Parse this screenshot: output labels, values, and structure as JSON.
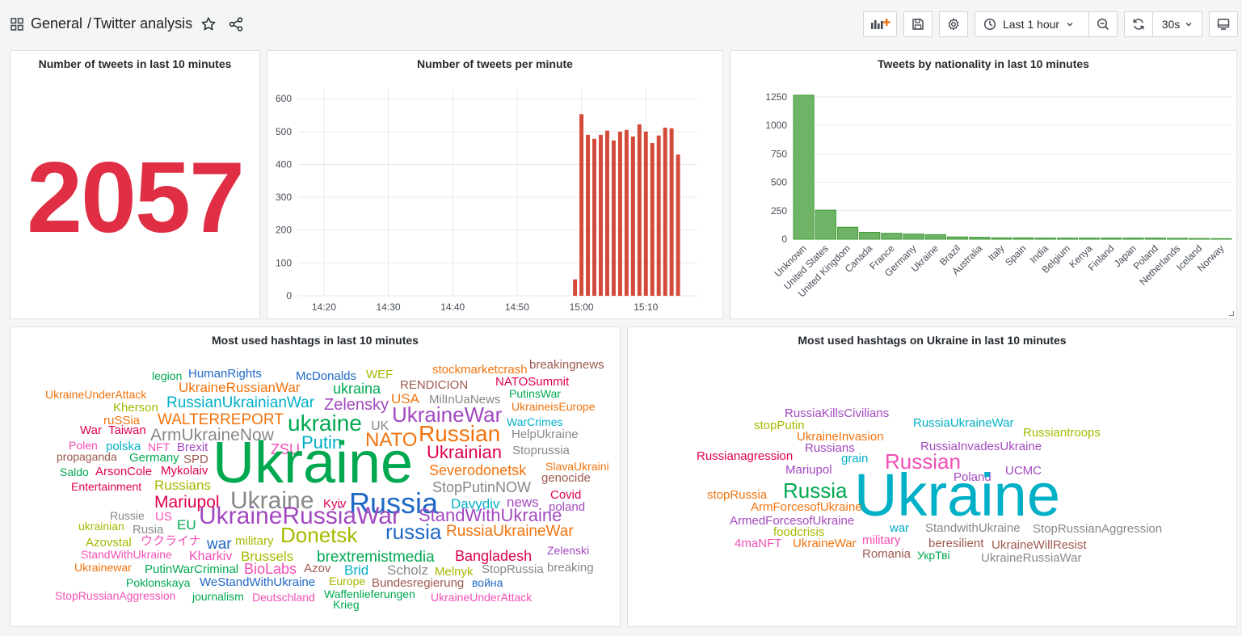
{
  "header": {
    "folder": "General",
    "separator": "/",
    "dashboard": "Twitter analysis",
    "time_range": "Last 1 hour",
    "refresh_interval": "30s"
  },
  "panels": {
    "stat": {
      "title": "Number of tweets in last 10 minutes",
      "value": "2057",
      "color": "#e02f44"
    },
    "per_minute": {
      "title": "Number of tweets per minute",
      "color": "#d44a3a",
      "y_ticks": [
        "0",
        "100",
        "200",
        "300",
        "400",
        "500",
        "600"
      ],
      "x_ticks": [
        "14:20",
        "14:30",
        "14:40",
        "14:50",
        "15:00",
        "15:10"
      ]
    },
    "nationality": {
      "title": "Tweets by nationality in last 10 minutes",
      "color": "#56a64b",
      "y_ticks": [
        "0",
        "250",
        "500",
        "750",
        "1000",
        "1250"
      ]
    },
    "hashtags": {
      "title": "Most used hashtags in last 10 minutes",
      "words": [
        {
          "t": "legion",
          "c": "#00a950",
          "x": 175,
          "y": 53,
          "s": 14
        },
        {
          "t": "HumanRights",
          "c": "#2068c5",
          "x": 220,
          "y": 50,
          "s": 15
        },
        {
          "t": "McDonalds",
          "c": "#2068c5",
          "x": 353,
          "y": 53,
          "s": 15
        },
        {
          "t": "WEF",
          "c": "#a7b900",
          "x": 440,
          "y": 51,
          "s": 15
        },
        {
          "t": "stockmarketcrash",
          "c": "#f2730d",
          "x": 522,
          "y": 45,
          "s": 15
        },
        {
          "t": "breakingnews",
          "c": "#9e5a4f",
          "x": 642,
          "y": 39,
          "s": 15
        },
        {
          "t": "RENDICION",
          "c": "#9e5a4f",
          "x": 482,
          "y": 64,
          "s": 15
        },
        {
          "t": "NATOSummit",
          "c": "#e0004f",
          "x": 600,
          "y": 60,
          "s": 15
        },
        {
          "t": "UkraineRussianWar",
          "c": "#f2730d",
          "x": 208,
          "y": 66,
          "s": 17
        },
        {
          "t": "ukraina",
          "c": "#00a950",
          "x": 399,
          "y": 67,
          "s": 18
        },
        {
          "t": "UkraineUnderAttack",
          "c": "#f2730d",
          "x": 43,
          "y": 76,
          "s": 14
        },
        {
          "t": "PutinsWar",
          "c": "#00a950",
          "x": 617,
          "y": 75,
          "s": 14
        },
        {
          "t": "USA",
          "c": "#f2730d",
          "x": 471,
          "y": 80,
          "s": 17
        },
        {
          "t": "MilInUaNews",
          "c": "#888888",
          "x": 518,
          "y": 82,
          "s": 15
        },
        {
          "t": "RussianUkrainianWar",
          "c": "#00b0c7",
          "x": 193,
          "y": 84,
          "s": 19
        },
        {
          "t": "Zelensky",
          "c": "#a249c0",
          "x": 388,
          "y": 86,
          "s": 20
        },
        {
          "t": "Kherson",
          "c": "#a7b900",
          "x": 127,
          "y": 92,
          "s": 15
        },
        {
          "t": "UkraineisEurope",
          "c": "#f2730d",
          "x": 620,
          "y": 91,
          "s": 14
        },
        {
          "t": "UkraineWar",
          "c": "#a249c0",
          "x": 472,
          "y": 95,
          "s": 26
        },
        {
          "t": "ruSSia",
          "c": "#f2730d",
          "x": 115,
          "y": 108,
          "s": 15
        },
        {
          "t": "WALTERREPORT",
          "c": "#f2730d",
          "x": 182,
          "y": 105,
          "s": 19
        },
        {
          "t": "ukraine",
          "c": "#00a950",
          "x": 343,
          "y": 105,
          "s": 28
        },
        {
          "t": "WarCrimes",
          "c": "#00b0c7",
          "x": 614,
          "y": 110,
          "s": 14
        },
        {
          "t": "War",
          "c": "#e0004f",
          "x": 86,
          "y": 120,
          "s": 15
        },
        {
          "t": "Taiwan",
          "c": "#e0004f",
          "x": 121,
          "y": 120,
          "s": 15
        },
        {
          "t": "UK",
          "c": "#888888",
          "x": 446,
          "y": 115,
          "s": 16
        },
        {
          "t": "ArmUkraineNow",
          "c": "#888888",
          "x": 173,
          "y": 123,
          "s": 21
        },
        {
          "t": "Russian",
          "c": "#f2730d",
          "x": 505,
          "y": 118,
          "s": 28
        },
        {
          "t": "HelpUkraine",
          "c": "#888888",
          "x": 620,
          "y": 125,
          "s": 15
        },
        {
          "t": "NATO",
          "c": "#f2730d",
          "x": 439,
          "y": 128,
          "s": 24
        },
        {
          "t": "Putin",
          "c": "#00b0c7",
          "x": 360,
          "y": 132,
          "s": 22
        },
        {
          "t": "Polen",
          "c": "#f24fb6",
          "x": 72,
          "y": 139,
          "s": 14
        },
        {
          "t": "polska",
          "c": "#00b0c7",
          "x": 118,
          "y": 140,
          "s": 15
        },
        {
          "t": "NFT",
          "c": "#f24fb6",
          "x": 170,
          "y": 141,
          "s": 14
        },
        {
          "t": "Brexit",
          "c": "#a249c0",
          "x": 206,
          "y": 141,
          "s": 15
        },
        {
          "t": "ZSU",
          "c": "#f24fb6",
          "x": 322,
          "y": 142,
          "s": 18
        },
        {
          "t": "Ukrainian",
          "c": "#e0004f",
          "x": 515,
          "y": 144,
          "s": 22
        },
        {
          "t": "Stoprussia",
          "c": "#888888",
          "x": 621,
          "y": 145,
          "s": 15
        },
        {
          "t": "propaganda",
          "c": "#9e5a4f",
          "x": 57,
          "y": 153,
          "s": 14
        },
        {
          "t": "Germany",
          "c": "#00a950",
          "x": 147,
          "y": 154,
          "s": 15
        },
        {
          "t": "SPD",
          "c": "#9e5a4f",
          "x": 214,
          "y": 156,
          "s": 15
        },
        {
          "t": "Ukraine",
          "c": "#00a950",
          "x": 250,
          "y": 132,
          "s": 72
        },
        {
          "t": "SlavaUkraini",
          "c": "#f2730d",
          "x": 662,
          "y": 165,
          "s": 14
        },
        {
          "t": "Saldo",
          "c": "#00a950",
          "x": 61,
          "y": 172,
          "s": 14
        },
        {
          "t": "ArsonCole",
          "c": "#e0004f",
          "x": 105,
          "y": 171,
          "s": 15
        },
        {
          "t": "Mykolaiv",
          "c": "#e0004f",
          "x": 186,
          "y": 170,
          "s": 15
        },
        {
          "t": "Severodonetsk",
          "c": "#f2730d",
          "x": 518,
          "y": 168,
          "s": 18
        },
        {
          "t": "genocide",
          "c": "#9e5a4f",
          "x": 657,
          "y": 179,
          "s": 15
        },
        {
          "t": "Entertainment",
          "c": "#e0004f",
          "x": 75,
          "y": 190,
          "s": 14
        },
        {
          "t": "Russians",
          "c": "#a7b900",
          "x": 178,
          "y": 187,
          "s": 17
        },
        {
          "t": "StopPutinNOW",
          "c": "#888888",
          "x": 522,
          "y": 189,
          "s": 18
        },
        {
          "t": "Mariupol",
          "c": "#e0004f",
          "x": 178,
          "y": 206,
          "s": 21
        },
        {
          "t": "Ukraine",
          "c": "#888888",
          "x": 272,
          "y": 200,
          "s": 30
        },
        {
          "t": "Russia",
          "c": "#2068c5",
          "x": 419,
          "y": 200,
          "s": 36
        },
        {
          "t": "Covid",
          "c": "#e0004f",
          "x": 668,
          "y": 200,
          "s": 15
        },
        {
          "t": "Kyiv",
          "c": "#e0004f",
          "x": 387,
          "y": 211,
          "s": 15
        },
        {
          "t": "Davydiv",
          "c": "#00b0c7",
          "x": 545,
          "y": 210,
          "s": 17
        },
        {
          "t": "news",
          "c": "#a249c0",
          "x": 614,
          "y": 208,
          "s": 17
        },
        {
          "t": "poland",
          "c": "#a249c0",
          "x": 666,
          "y": 215,
          "s": 15
        },
        {
          "t": "Russie",
          "c": "#888888",
          "x": 123,
          "y": 226,
          "s": 14
        },
        {
          "t": "US",
          "c": "#f24fb6",
          "x": 179,
          "y": 227,
          "s": 15
        },
        {
          "t": "UkraineRussiaWar",
          "c": "#a249c0",
          "x": 233,
          "y": 219,
          "s": 30
        },
        {
          "t": "StandWithUkraine",
          "c": "#a249c0",
          "x": 505,
          "y": 222,
          "s": 22
        },
        {
          "t": "EU",
          "c": "#00a950",
          "x": 206,
          "y": 236,
          "s": 17
        },
        {
          "t": "ukrainian",
          "c": "#a7b900",
          "x": 84,
          "y": 239,
          "s": 14
        },
        {
          "t": "Rusia",
          "c": "#888888",
          "x": 151,
          "y": 243,
          "s": 15
        },
        {
          "t": "Donetsk",
          "c": "#a7b900",
          "x": 334,
          "y": 244,
          "s": 26
        },
        {
          "t": "russia",
          "c": "#2068c5",
          "x": 464,
          "y": 240,
          "s": 26
        },
        {
          "t": "RussiaUkraineWar",
          "c": "#f2730d",
          "x": 539,
          "y": 243,
          "s": 19
        },
        {
          "t": "Azovstal",
          "c": "#a7b900",
          "x": 93,
          "y": 259,
          "s": 15
        },
        {
          "t": "ウクライナ",
          "c": "#f24fb6",
          "x": 161,
          "y": 257,
          "s": 15
        },
        {
          "t": "war",
          "c": "#2068c5",
          "x": 243,
          "y": 259,
          "s": 19
        },
        {
          "t": "military",
          "c": "#a7b900",
          "x": 278,
          "y": 257,
          "s": 15
        },
        {
          "t": "Zelenski",
          "c": "#a249c0",
          "x": 664,
          "y": 269,
          "s": 14
        },
        {
          "t": "StandWithUkraine",
          "c": "#f24fb6",
          "x": 87,
          "y": 274,
          "s": 14
        },
        {
          "t": "Kharkiv",
          "c": "#f24fb6",
          "x": 221,
          "y": 276,
          "s": 16
        },
        {
          "t": "Brussels",
          "c": "#a7b900",
          "x": 285,
          "y": 275,
          "s": 17
        },
        {
          "t": "brextremistmedia",
          "c": "#00a950",
          "x": 379,
          "y": 275,
          "s": 19
        },
        {
          "t": "Bangladesh",
          "c": "#e0004f",
          "x": 550,
          "y": 274,
          "s": 18
        },
        {
          "t": "Ukrainewar",
          "c": "#f2730d",
          "x": 79,
          "y": 290,
          "s": 14
        },
        {
          "t": "PutinWarCriminal",
          "c": "#00a950",
          "x": 166,
          "y": 292,
          "s": 15
        },
        {
          "t": "BioLabs",
          "c": "#f24fb6",
          "x": 289,
          "y": 290,
          "s": 18
        },
        {
          "t": "Azov",
          "c": "#9e5a4f",
          "x": 363,
          "y": 291,
          "s": 15
        },
        {
          "t": "Brid",
          "c": "#00b0c7",
          "x": 413,
          "y": 292,
          "s": 17
        },
        {
          "t": "Scholz",
          "c": "#888888",
          "x": 466,
          "y": 292,
          "s": 17
        },
        {
          "t": "StopRussia",
          "c": "#888888",
          "x": 583,
          "y": 292,
          "s": 15
        },
        {
          "t": "breaking",
          "c": "#888888",
          "x": 664,
          "y": 290,
          "s": 15
        },
        {
          "t": "Melnyk",
          "c": "#a7b900",
          "x": 525,
          "y": 295,
          "s": 15
        },
        {
          "t": "Poklonskaya",
          "c": "#00a950",
          "x": 143,
          "y": 309,
          "s": 14
        },
        {
          "t": "WeStandWithUkraine",
          "c": "#2068c5",
          "x": 234,
          "y": 308,
          "s": 15
        },
        {
          "t": "Europe",
          "c": "#a7b900",
          "x": 394,
          "y": 307,
          "s": 14
        },
        {
          "t": "Bundesregierung",
          "c": "#9e5a4f",
          "x": 447,
          "y": 309,
          "s": 15
        },
        {
          "t": "война",
          "c": "#2068c5",
          "x": 571,
          "y": 309,
          "s": 14
        },
        {
          "t": "StopRussianAggression",
          "c": "#f24fb6",
          "x": 55,
          "y": 325,
          "s": 14
        },
        {
          "t": "journalism",
          "c": "#00a950",
          "x": 225,
          "y": 326,
          "s": 14
        },
        {
          "t": "Deutschland",
          "c": "#f24fb6",
          "x": 299,
          "y": 327,
          "s": 14
        },
        {
          "t": "Waffenlieferungen",
          "c": "#00a950",
          "x": 388,
          "y": 323,
          "s": 14
        },
        {
          "t": "UkraineUnderAttack",
          "c": "#f24fb6",
          "x": 520,
          "y": 327,
          "s": 14
        },
        {
          "t": "Krieg",
          "c": "#00a950",
          "x": 399,
          "y": 336,
          "s": 14
        }
      ]
    },
    "ukraine_hashtags": {
      "title": "Most used hashtags on Ukraine in last 10 minutes",
      "words": [
        {
          "t": "RussiaKillsCivilians",
          "c": "#a249c0",
          "x": 194,
          "y": 99,
          "s": 15
        },
        {
          "t": "stopPutin",
          "c": "#a7b900",
          "x": 156,
          "y": 114,
          "s": 15
        },
        {
          "t": "RussiaUkraineWar",
          "c": "#00b0c7",
          "x": 353,
          "y": 111,
          "s": 15
        },
        {
          "t": "Russiantroops",
          "c": "#a7b900",
          "x": 489,
          "y": 123,
          "s": 15
        },
        {
          "t": "UkraineInvasion",
          "c": "#f2730d",
          "x": 209,
          "y": 128,
          "s": 15
        },
        {
          "t": "Russians",
          "c": "#a249c0",
          "x": 219,
          "y": 142,
          "s": 15
        },
        {
          "t": "RussiaInvadesUkraine",
          "c": "#a249c0",
          "x": 362,
          "y": 140,
          "s": 15
        },
        {
          "t": "Russianagression",
          "c": "#e0004f",
          "x": 85,
          "y": 152,
          "s": 15
        },
        {
          "t": "grain",
          "c": "#00b0c7",
          "x": 264,
          "y": 155,
          "s": 15
        },
        {
          "t": "Russian",
          "c": "#f24fb6",
          "x": 318,
          "y": 153,
          "s": 26
        },
        {
          "t": "Mariupol",
          "c": "#a249c0",
          "x": 195,
          "y": 169,
          "s": 15
        },
        {
          "t": "UCMC",
          "c": "#a249c0",
          "x": 467,
          "y": 170,
          "s": 15
        },
        {
          "t": "Poland",
          "c": "#a249c0",
          "x": 403,
          "y": 178,
          "s": 15
        },
        {
          "t": "Russia",
          "c": "#00a950",
          "x": 192,
          "y": 189,
          "s": 26
        },
        {
          "t": "Ukraine",
          "c": "#00b0c7",
          "x": 280,
          "y": 171,
          "s": 74
        },
        {
          "t": "stopRussia",
          "c": "#f2730d",
          "x": 98,
          "y": 200,
          "s": 15
        },
        {
          "t": "ArmForcesofUkraine",
          "c": "#f2730d",
          "x": 152,
          "y": 215,
          "s": 15
        },
        {
          "t": "ArmedForcesofUkraine",
          "c": "#a249c0",
          "x": 126,
          "y": 232,
          "s": 15
        },
        {
          "t": "war",
          "c": "#00b0c7",
          "x": 324,
          "y": 241,
          "s": 15
        },
        {
          "t": "StandwithUkraine",
          "c": "#888888",
          "x": 368,
          "y": 241,
          "s": 15
        },
        {
          "t": "StopRussianAggression",
          "c": "#888888",
          "x": 501,
          "y": 242,
          "s": 15
        },
        {
          "t": "foodcrisis",
          "c": "#a7b900",
          "x": 180,
          "y": 246,
          "s": 15
        },
        {
          "t": "military",
          "c": "#f24fb6",
          "x": 290,
          "y": 256,
          "s": 15
        },
        {
          "t": "beresilient",
          "c": "#9e5a4f",
          "x": 372,
          "y": 260,
          "s": 15
        },
        {
          "t": "UkraineWillResist",
          "c": "#9e5a4f",
          "x": 450,
          "y": 262,
          "s": 15
        },
        {
          "t": "4maNFT",
          "c": "#f24fb6",
          "x": 132,
          "y": 260,
          "s": 15
        },
        {
          "t": "UkraineWar",
          "c": "#f2730d",
          "x": 204,
          "y": 260,
          "s": 15
        },
        {
          "t": "Romania",
          "c": "#9e5a4f",
          "x": 290,
          "y": 273,
          "s": 15
        },
        {
          "t": "УкрТві",
          "c": "#00a950",
          "x": 358,
          "y": 275,
          "s": 14
        },
        {
          "t": "UkraineRussiaWar",
          "c": "#888888",
          "x": 437,
          "y": 278,
          "s": 15
        }
      ]
    }
  },
  "chart_data": [
    {
      "type": "bar",
      "title": "Number of tweets per minute",
      "x": [
        "14:59",
        "15:00",
        "15:01",
        "15:02",
        "15:03",
        "15:04",
        "15:05",
        "15:06",
        "15:07",
        "15:08",
        "15:09",
        "15:10",
        "15:11",
        "15:12",
        "15:13",
        "15:14",
        "15:15"
      ],
      "values": [
        50,
        553,
        490,
        478,
        490,
        503,
        473,
        500,
        505,
        485,
        522,
        500,
        465,
        488,
        512,
        510,
        430
      ],
      "x_range": [
        "14:16",
        "15:18"
      ],
      "ylim": [
        0,
        630
      ],
      "grid": true,
      "legend": "none"
    },
    {
      "type": "bar",
      "title": "Tweets by nationality in last 10 minutes",
      "categories": [
        "Unknown",
        "United States",
        "United Kingdom",
        "Canada",
        "France",
        "Germany",
        "Ukraine",
        "Brazil",
        "Australia",
        "Italy",
        "Spain",
        "India",
        "Belgium",
        "Kenya",
        "Finland",
        "Japan",
        "Poland",
        "Netherlands",
        "Iceland",
        "Norway"
      ],
      "values": [
        1265,
        255,
        105,
        60,
        52,
        45,
        40,
        20,
        17,
        12,
        12,
        10,
        10,
        10,
        10,
        10,
        10,
        8,
        6,
        5
      ],
      "ylim": [
        0,
        1320
      ],
      "grid": true,
      "legend": "none"
    }
  ]
}
